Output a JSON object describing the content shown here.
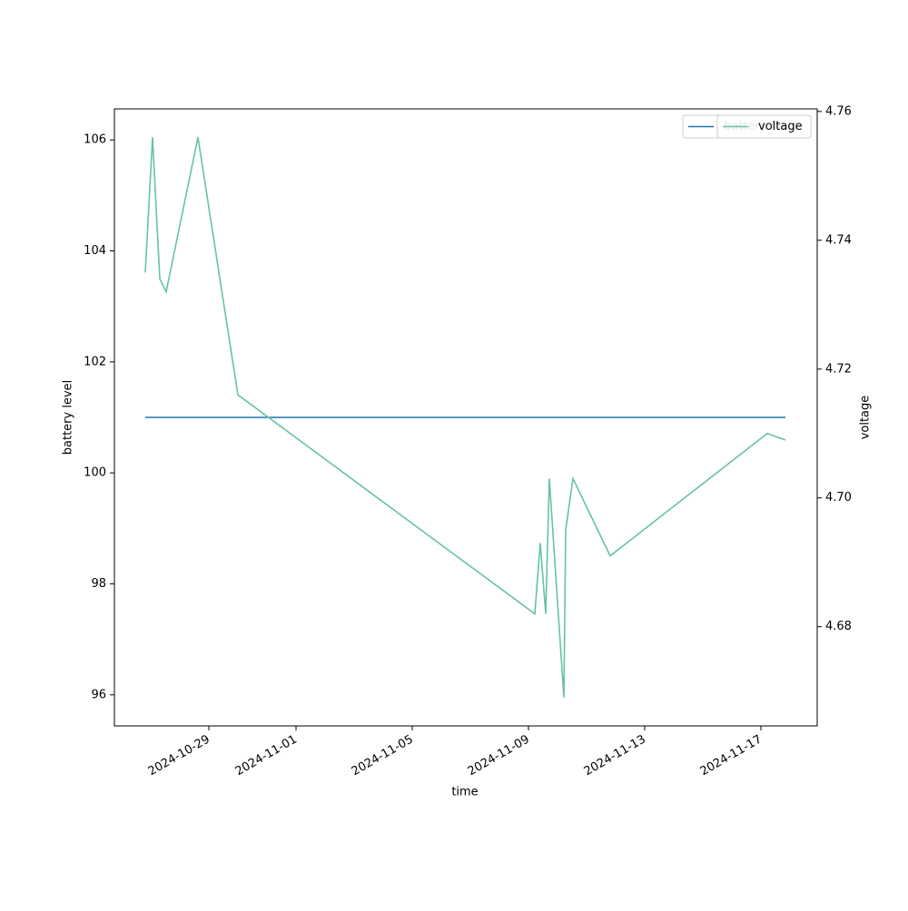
{
  "chart_data": {
    "type": "line",
    "x_label": "time",
    "y_label": "battery level",
    "y2_label": "voltage",
    "x": [
      "2024-10-26T19:30",
      "2024-10-27T01:30",
      "2024-10-27T07:30",
      "2024-10-27T12:45",
      "2024-10-28T15:00",
      "2024-10-30T00:00",
      "2024-11-09T05:15",
      "2024-11-09T09:45",
      "2024-11-09T14:15",
      "2024-11-09T17:15",
      "2024-11-10T05:15",
      "2024-11-10T06:45",
      "2024-11-10T12:45",
      "2024-11-11T19:30",
      "2024-11-17T05:15",
      "2024-11-17T20:15"
    ],
    "series": [
      {
        "name": "battery level",
        "color": "#1f77b4",
        "values": [
          101,
          101,
          101,
          101,
          101,
          101,
          101,
          101,
          101,
          101,
          101,
          101,
          101,
          101,
          101,
          101
        ]
      },
      {
        "name": "voltage",
        "color": "#66c2a5",
        "axis": "y2",
        "values": [
          4.735,
          4.756,
          4.734,
          4.732,
          4.756,
          4.716,
          4.682,
          4.693,
          4.682,
          4.703,
          4.669,
          4.695,
          4.703,
          4.691,
          4.71,
          4.709
        ]
      }
    ],
    "xlim": [
      "2024-10-25T18:00",
      "2024-11-18T22:30"
    ],
    "xticks": [
      "2024-10-29",
      "2024-11-01",
      "2024-11-05",
      "2024-11-09",
      "2024-11-13",
      "2024-11-17"
    ],
    "ylim": [
      95.44,
      106.56
    ],
    "yticks": [
      96,
      98,
      100,
      102,
      104,
      106
    ],
    "y2lim": [
      4.6646,
      4.7604
    ],
    "y2ticks": [
      4.68,
      {
        "value": 4.7,
        "label": "4.70"
      },
      4.72,
      4.74,
      4.76
    ],
    "legend": "upper right",
    "grid": false
  }
}
